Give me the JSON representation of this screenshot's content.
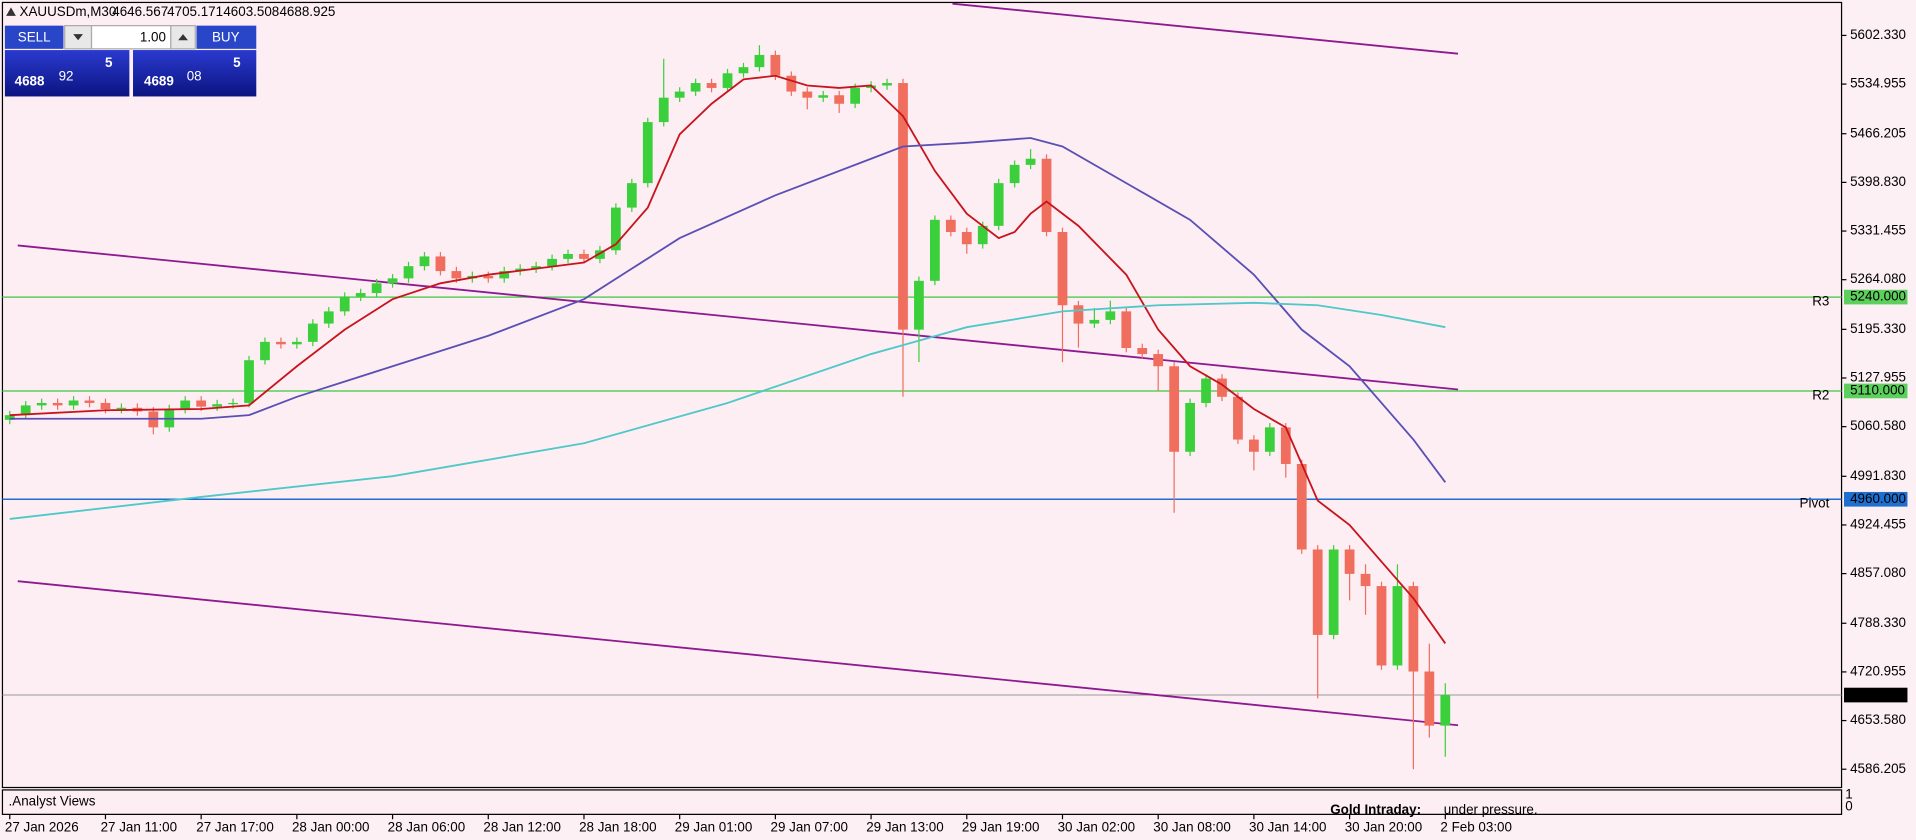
{
  "header": {
    "symbol": "XAUUSDm,M30"
  },
  "trade_panel": {
    "sell": "SELL",
    "lot": "1.00",
    "buy": "BUY",
    "bid": [
      "4688",
      "92",
      "5"
    ],
    "ask": [
      "4689",
      "08",
      "5"
    ]
  },
  "indicator_panel": {
    "title": ".Analyst Views",
    "scale_labels": [
      1,
      0
    ],
    "annotation": [
      "Gold Intraday:",
      "under pressure."
    ]
  },
  "chart_data": {
    "type": "candlestick",
    "up_color": "#3ccf3c",
    "down_color": "#f06e5e",
    "ylim": [
      4560.9,
      5648.0
    ],
    "yticks": [
      {
        "value": 5602.33,
        "label": "5602.330"
      },
      {
        "value": 5534.955,
        "label": "5534.955"
      },
      {
        "value": 5466.205,
        "label": "5466.205"
      },
      {
        "value": 5398.83,
        "label": "5398.830"
      },
      {
        "value": 5331.455,
        "label": "5331.455"
      },
      {
        "value": 5264.08,
        "label": "5264.080"
      },
      {
        "value": 5195.33,
        "label": "5195.330"
      },
      {
        "value": 5127.955,
        "label": "5127.955"
      },
      {
        "value": 5060.58,
        "label": "5060.580"
      },
      {
        "value": 4991.83,
        "label": "4991.830"
      },
      {
        "value": 4924.455,
        "label": "4924.455"
      },
      {
        "value": 4857.08,
        "label": "4857.080"
      },
      {
        "value": 4788.33,
        "label": "4788.330"
      },
      {
        "value": 4720.955,
        "label": "4720.955"
      },
      {
        "value": 4653.58,
        "label": "4653.580"
      },
      {
        "value": 4586.205,
        "label": "4586.205"
      }
    ],
    "categories": [
      "27 Jan 2026",
      null,
      null,
      null,
      null,
      null,
      "27 Jan 11:00",
      null,
      null,
      null,
      null,
      null,
      "27 Jan 17:00",
      null,
      null,
      null,
      null,
      null,
      "28 Jan 00:00",
      null,
      null,
      null,
      null,
      null,
      "28 Jan 06:00",
      null,
      null,
      null,
      null,
      null,
      "28 Jan 12:00",
      null,
      null,
      null,
      null,
      null,
      "28 Jan 18:00",
      null,
      null,
      null,
      null,
      null,
      "29 Jan 01:00",
      null,
      null,
      null,
      null,
      null,
      "29 Jan 07:00",
      null,
      null,
      null,
      null,
      null,
      "29 Jan 13:00",
      null,
      null,
      null,
      null,
      null,
      "29 Jan 19:00",
      null,
      null,
      null,
      null,
      null,
      "30 Jan 02:00",
      null,
      null,
      null,
      null,
      null,
      "30 Jan 08:00",
      null,
      null,
      null,
      null,
      null,
      "30 Jan 14:00",
      null,
      null,
      null,
      null,
      null,
      "30 Jan 20:00",
      null,
      null,
      null,
      null,
      null,
      "2 Feb 03:00"
    ],
    "ohlc": [
      [
        5070.0,
        5082.5,
        5064.0,
        5076.5
      ],
      [
        5076.5,
        5096.0,
        5070.5,
        5090.0
      ],
      [
        5090.0,
        5099.4,
        5084.0,
        5093.4
      ],
      [
        5093.4,
        5099.4,
        5084.0,
        5090.0
      ],
      [
        5090.0,
        5102.8,
        5084.0,
        5096.8
      ],
      [
        5096.8,
        5102.8,
        5087.4,
        5093.4
      ],
      [
        5093.4,
        5099.4,
        5079.0,
        5085.0
      ],
      [
        5085.0,
        5092.7,
        5079.0,
        5086.7
      ],
      [
        5086.7,
        5092.7,
        5075.6,
        5081.6
      ],
      [
        5081.6,
        5087.6,
        5050.0,
        5059.6
      ],
      [
        5059.6,
        5091.0,
        5053.6,
        5085.0
      ],
      [
        5085.0,
        5102.8,
        5079.0,
        5096.8
      ],
      [
        5096.8,
        5102.8,
        5082.3,
        5088.3
      ],
      [
        5088.3,
        5097.7,
        5082.3,
        5091.7
      ],
      [
        5091.7,
        5099.4,
        5085.7,
        5093.4
      ],
      [
        5093.4,
        5158.6,
        5087.4,
        5152.6
      ],
      [
        5152.6,
        5184.0,
        5146.6,
        5178.0
      ],
      [
        5178.0,
        5184.0,
        5168.6,
        5174.6
      ],
      [
        5174.6,
        5184.0,
        5168.6,
        5178.0
      ],
      [
        5178.0,
        5209.3,
        5172.0,
        5203.3
      ],
      [
        5203.3,
        5226.2,
        5197.3,
        5220.2
      ],
      [
        5220.2,
        5246.5,
        5214.2,
        5240.5
      ],
      [
        5240.5,
        5251.6,
        5234.5,
        5245.6
      ],
      [
        5245.6,
        5265.1,
        5239.6,
        5259.1
      ],
      [
        5259.1,
        5271.9,
        5253.1,
        5265.9
      ],
      [
        5265.9,
        5288.8,
        5259.9,
        5282.8
      ],
      [
        5282.8,
        5302.3,
        5276.8,
        5296.3
      ],
      [
        5296.3,
        5302.3,
        5270.0,
        5276.0
      ],
      [
        5276.0,
        5282.0,
        5259.9,
        5265.9
      ],
      [
        5265.9,
        5275.3,
        5259.9,
        5269.3
      ],
      [
        5269.3,
        5275.3,
        5259.9,
        5265.9
      ],
      [
        5265.9,
        5282.0,
        5259.9,
        5276.0
      ],
      [
        5276.0,
        5285.4,
        5270.0,
        5279.4
      ],
      [
        5279.4,
        5288.8,
        5273.4,
        5282.8
      ],
      [
        5282.8,
        5298.9,
        5276.8,
        5292.9
      ],
      [
        5292.9,
        5305.7,
        5286.9,
        5299.7
      ],
      [
        5299.7,
        5305.7,
        5286.9,
        5292.9
      ],
      [
        5292.9,
        5310.8,
        5286.9,
        5304.8
      ],
      [
        5304.8,
        5369.9,
        5298.8,
        5363.9
      ],
      [
        5363.9,
        5403.8,
        5357.9,
        5397.8
      ],
      [
        5397.8,
        5488.3,
        5391.8,
        5482.3
      ],
      [
        5482.3,
        5570.0,
        5476.3,
        5516.1
      ],
      [
        5516.1,
        5530.6,
        5510.1,
        5524.6
      ],
      [
        5524.6,
        5542.4,
        5518.6,
        5536.4
      ],
      [
        5536.4,
        5542.4,
        5523.6,
        5529.6
      ],
      [
        5529.6,
        5555.9,
        5523.6,
        5549.9
      ],
      [
        5549.9,
        5564.4,
        5543.9,
        5558.4
      ],
      [
        5558.4,
        5588.8,
        5552.4,
        5575.3
      ],
      [
        5575.3,
        5581.3,
        5540.5,
        5546.5
      ],
      [
        5546.5,
        5552.5,
        5518.6,
        5524.6
      ],
      [
        5524.6,
        5530.6,
        5500.0,
        5516.1
      ],
      [
        5516.1,
        5525.5,
        5510.1,
        5519.5
      ],
      [
        5519.5,
        5525.5,
        5495.0,
        5507.7
      ],
      [
        5507.7,
        5535.6,
        5501.7,
        5529.6
      ],
      [
        5529.6,
        5539.0,
        5523.6,
        5533.0
      ],
      [
        5533.0,
        5542.4,
        5527.0,
        5536.4
      ],
      [
        5536.4,
        5542.4,
        5101.9,
        5194.9
      ],
      [
        5194.9,
        5268.5,
        5150.0,
        5262.5
      ],
      [
        5262.5,
        5353.0,
        5256.5,
        5347.0
      ],
      [
        5347.0,
        5353.0,
        5324.1,
        5330.1
      ],
      [
        5330.1,
        5336.1,
        5300.0,
        5313.2
      ],
      [
        5313.2,
        5344.6,
        5307.2,
        5338.6
      ],
      [
        5338.6,
        5403.8,
        5332.6,
        5397.8
      ],
      [
        5397.8,
        5429.1,
        5391.8,
        5423.1
      ],
      [
        5423.1,
        5445.0,
        5417.1,
        5431.6
      ],
      [
        5431.6,
        5437.6,
        5324.1,
        5330.1
      ],
      [
        5330.1,
        5336.1,
        5150.0,
        5228.7
      ],
      [
        5228.7,
        5234.7,
        5170.0,
        5203.3
      ],
      [
        5203.3,
        5225.0,
        5197.3,
        5208.4
      ],
      [
        5208.4,
        5235.0,
        5202.4,
        5220.2
      ],
      [
        5220.2,
        5226.2,
        5163.5,
        5169.5
      ],
      [
        5169.5,
        5175.5,
        5155.1,
        5161.1
      ],
      [
        5161.1,
        5167.1,
        5110.0,
        5144.2
      ],
      [
        5144.2,
        5150.2,
        4941.3,
        5025.8
      ],
      [
        5025.8,
        5099.4,
        5019.8,
        5093.4
      ],
      [
        5093.4,
        5133.2,
        5087.4,
        5127.2
      ],
      [
        5127.2,
        5133.2,
        5095.9,
        5101.9
      ],
      [
        5101.9,
        5107.9,
        5036.7,
        5042.7
      ],
      [
        5042.7,
        5048.7,
        5000.0,
        5025.8
      ],
      [
        5025.8,
        5065.6,
        5019.8,
        5059.6
      ],
      [
        5059.6,
        5065.6,
        4990.0,
        5008.9
      ],
      [
        5008.9,
        5014.9,
        4884.5,
        4890.5
      ],
      [
        4890.5,
        4896.5,
        4684.3,
        4772.2
      ],
      [
        4772.2,
        4896.5,
        4766.2,
        4890.5
      ],
      [
        4890.5,
        4896.5,
        4820.0,
        4856.7
      ],
      [
        4856.7,
        4870.0,
        4800.0,
        4839.8
      ],
      [
        4839.8,
        4845.8,
        4723.9,
        4729.9
      ],
      [
        4729.9,
        4870.0,
        4723.9,
        4839.8
      ],
      [
        4839.8,
        4845.8,
        4586.2,
        4721.5
      ],
      [
        4721.5,
        4760.0,
        4630.0,
        4646.6
      ],
      [
        4646.567,
        4705.171,
        4603.508,
        4688.925
      ]
    ],
    "moving_averages": [
      {
        "color": "#c8141c",
        "x": [
          0,
          6,
          12,
          15,
          18,
          21,
          24,
          27,
          30,
          33,
          36,
          38,
          40,
          42,
          44,
          46,
          48,
          50,
          52,
          54,
          56,
          58,
          60,
          62,
          63,
          64,
          65,
          67,
          70,
          72,
          74,
          76,
          78,
          80,
          81,
          82,
          84,
          86,
          88,
          90
        ],
        "values": [
          5076.5,
          5083.3,
          5085.0,
          5090.0,
          5144.2,
          5194.9,
          5237.1,
          5259.1,
          5271.0,
          5279.4,
          5287.9,
          5313.2,
          5363.9,
          5465.4,
          5507.7,
          5541.5,
          5546.5,
          5533.0,
          5529.6,
          5533.0,
          5490.7,
          5414.7,
          5355.5,
          5321.7,
          5330.1,
          5355.5,
          5372.4,
          5338.6,
          5271.0,
          5194.9,
          5144.2,
          5118.8,
          5085.0,
          5059.6,
          5008.9,
          4958.2,
          4924.4,
          4873.6,
          4822.9,
          4760.4
        ]
      },
      {
        "color": "#5a50b4",
        "x": [
          0,
          12,
          15,
          18,
          24,
          30,
          36,
          42,
          48,
          54,
          56,
          60,
          64,
          66,
          70,
          74,
          78,
          81,
          84,
          88,
          90
        ],
        "values": [
          5071.5,
          5071.5,
          5076.5,
          5101.9,
          5144.2,
          5186.4,
          5237.1,
          5321.7,
          5380.9,
          5431.6,
          5448.5,
          5453.6,
          5460.3,
          5448.5,
          5397.8,
          5347.0,
          5271.0,
          5194.9,
          5144.2,
          5042.7,
          4983.5
        ]
      },
      {
        "color": "#4ec8c8",
        "x": [
          0,
          12,
          24,
          36,
          45,
          54,
          60,
          66,
          72,
          78,
          82,
          86,
          90
        ],
        "values": [
          4932.8,
          4963.3,
          4992.0,
          5037.6,
          5093.4,
          5161.1,
          5198.3,
          5220.2,
          5228.7,
          5232.1,
          5228.7,
          5215.2,
          5198.3
        ]
      }
    ],
    "trendlines": [
      {
        "color": "#8e1a90",
        "x": [
          59.1,
          90.8
        ],
        "values": [
          5646.3,
          5577.0
        ]
      },
      {
        "color": "#8e1a90",
        "x": [
          0.5,
          90.8
        ],
        "values": [
          5311.5,
          5112.0
        ]
      },
      {
        "color": "#8e1a90",
        "x": [
          0.5,
          90.8
        ],
        "values": [
          4846.6,
          4647.1
        ]
      }
    ],
    "levels": [
      {
        "name": "R3",
        "value": 5240,
        "label": "5240.000",
        "color": "#5ccf5c"
      },
      {
        "name": "R2",
        "value": 5110,
        "label": "5110.000",
        "color": "#5ccf5c"
      },
      {
        "name": "Pivot",
        "value": 4960,
        "label": "4960.000",
        "color": "#1f6fd0"
      }
    ]
  }
}
